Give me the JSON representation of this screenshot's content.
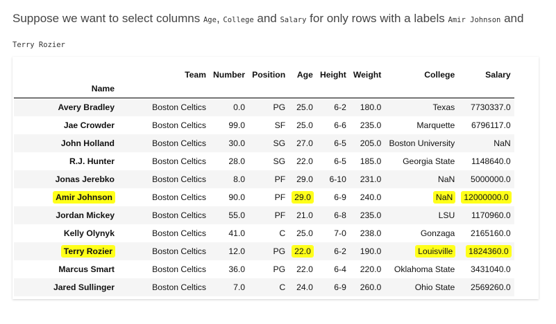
{
  "intro": {
    "part1": "Suppose we want to select columns ",
    "code_age": "Age",
    "sep1": ", ",
    "code_college": "College",
    "sep2": " and ",
    "code_salary": "Salary",
    "part2": " for only rows with a labels ",
    "code_amir": "Amir Johnson",
    "sep3": " and ",
    "code_terry": "Terry Rozier"
  },
  "table": {
    "columns": [
      "Team",
      "Number",
      "Position",
      "Age",
      "Height",
      "Weight",
      "College",
      "Salary"
    ],
    "index_name": "Name",
    "rows": [
      {
        "name": "Avery Bradley",
        "team": "Boston Celtics",
        "number": "0.0",
        "position": "PG",
        "age": "25.0",
        "height": "6-2",
        "weight": "180.0",
        "college": "Texas",
        "salary": "7730337.0"
      },
      {
        "name": "Jae Crowder",
        "team": "Boston Celtics",
        "number": "99.0",
        "position": "SF",
        "age": "25.0",
        "height": "6-6",
        "weight": "235.0",
        "college": "Marquette",
        "salary": "6796117.0"
      },
      {
        "name": "John Holland",
        "team": "Boston Celtics",
        "number": "30.0",
        "position": "SG",
        "age": "27.0",
        "height": "6-5",
        "weight": "205.0",
        "college": "Boston University",
        "salary": "NaN"
      },
      {
        "name": "R.J. Hunter",
        "team": "Boston Celtics",
        "number": "28.0",
        "position": "SG",
        "age": "22.0",
        "height": "6-5",
        "weight": "185.0",
        "college": "Georgia State",
        "salary": "1148640.0"
      },
      {
        "name": "Jonas Jerebko",
        "team": "Boston Celtics",
        "number": "8.0",
        "position": "PF",
        "age": "29.0",
        "height": "6-10",
        "weight": "231.0",
        "college": "NaN",
        "salary": "5000000.0"
      },
      {
        "name": "Amir Johnson",
        "team": "Boston Celtics",
        "number": "90.0",
        "position": "PF",
        "age": "29.0",
        "height": "6-9",
        "weight": "240.0",
        "college": "NaN",
        "salary": "12000000.0",
        "highlight": true
      },
      {
        "name": "Jordan Mickey",
        "team": "Boston Celtics",
        "number": "55.0",
        "position": "PF",
        "age": "21.0",
        "height": "6-8",
        "weight": "235.0",
        "college": "LSU",
        "salary": "1170960.0"
      },
      {
        "name": "Kelly Olynyk",
        "team": "Boston Celtics",
        "number": "41.0",
        "position": "C",
        "age": "25.0",
        "height": "7-0",
        "weight": "238.0",
        "college": "Gonzaga",
        "salary": "2165160.0"
      },
      {
        "name": "Terry Rozier",
        "team": "Boston Celtics",
        "number": "12.0",
        "position": "PG",
        "age": "22.0",
        "height": "6-2",
        "weight": "190.0",
        "college": "Louisville",
        "salary": "1824360.0",
        "highlight": true
      },
      {
        "name": "Marcus Smart",
        "team": "Boston Celtics",
        "number": "36.0",
        "position": "PG",
        "age": "22.0",
        "height": "6-4",
        "weight": "220.0",
        "college": "Oklahoma State",
        "salary": "3431040.0"
      },
      {
        "name": "Jared Sullinger",
        "team": "Boston Celtics",
        "number": "7.0",
        "position": "C",
        "age": "24.0",
        "height": "6-9",
        "weight": "260.0",
        "college": "Ohio State",
        "salary": "2569260.0"
      }
    ]
  },
  "colors": {
    "highlight": "#ffff1a",
    "stripe": "#f5f5f5"
  }
}
